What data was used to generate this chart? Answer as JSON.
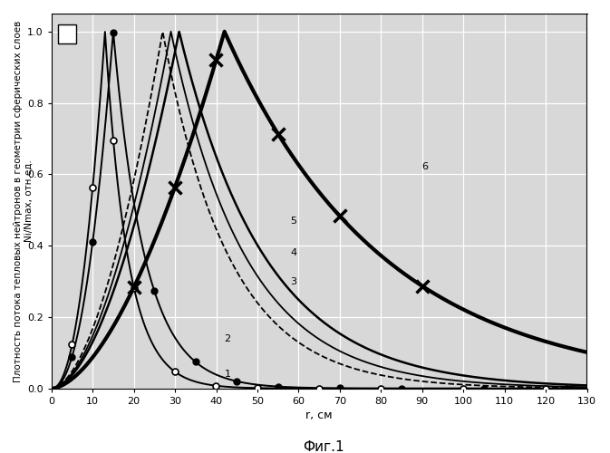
{
  "title": "Фиг.1",
  "ylabel": "Плотность потока тепловых нейтронов в геометрии сферических слоев\nNi/Nmax, отн.ед.",
  "xlabel": "r, см",
  "xlim": [
    0,
    130
  ],
  "ylim": [
    0,
    1.05
  ],
  "bg": "#d8d8d8",
  "curves": [
    {
      "peak": 13,
      "fall": 0.18,
      "rise_exp": 2.2,
      "lw": 1.4,
      "ls": "-",
      "label": "1",
      "num_x": 42,
      "num_y": 0.04,
      "marker": "hollow_circle",
      "mpos": [
        5,
        10,
        15,
        20,
        30,
        40,
        50,
        65,
        80,
        100,
        120
      ]
    },
    {
      "peak": 15,
      "fall": 0.13,
      "rise_exp": 2.2,
      "lw": 1.4,
      "ls": "-",
      "label": "2",
      "num_x": 42,
      "num_y": 0.14,
      "marker": "filled_circle",
      "mpos": [
        5,
        10,
        15,
        25,
        35,
        45,
        55,
        70,
        85,
        105,
        125
      ]
    },
    {
      "peak": 27,
      "fall": 0.062,
      "rise_exp": 1.8,
      "lw": 1.3,
      "ls": "--",
      "label": "3",
      "num_x": 58,
      "num_y": 0.3,
      "marker": null,
      "mpos": []
    },
    {
      "peak": 29,
      "fall": 0.055,
      "rise_exp": 1.8,
      "lw": 1.3,
      "ls": "-",
      "label": "4",
      "num_x": 58,
      "num_y": 0.38,
      "marker": null,
      "mpos": []
    },
    {
      "peak": 31,
      "fall": 0.048,
      "rise_exp": 1.8,
      "lw": 1.8,
      "ls": "-",
      "label": "5",
      "num_x": 58,
      "num_y": 0.47,
      "marker": null,
      "mpos": []
    },
    {
      "peak": 42,
      "fall": 0.026,
      "rise_exp": 1.7,
      "lw": 3.0,
      "ls": "-",
      "label": "6",
      "num_x": 90,
      "num_y": 0.62,
      "marker": "x",
      "mpos": [
        20,
        30,
        40,
        55,
        70,
        90
      ]
    }
  ]
}
